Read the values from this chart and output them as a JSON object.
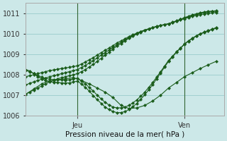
{
  "xlabel": "Pression niveau de la mer( hPa )",
  "bg_color": "#cce8e8",
  "grid_color": "#99cccc",
  "line_color": "#1a5c1a",
  "ylim": [
    1006.0,
    1011.5
  ],
  "xlim": [
    0,
    50
  ],
  "yticks": [
    1006,
    1007,
    1008,
    1009,
    1010,
    1011
  ],
  "xtick_positions": [
    13,
    40
  ],
  "xtick_labels": [
    "Jeu",
    "Ven"
  ],
  "vlines": [
    13,
    40
  ],
  "series": [
    {
      "x": [
        0,
        1,
        2,
        3,
        4,
        5,
        6,
        7,
        8,
        9,
        10,
        11,
        12,
        13,
        14,
        15,
        16,
        17,
        18,
        19,
        20,
        21,
        22,
        23,
        24,
        25,
        26,
        27,
        28,
        29,
        30,
        31,
        32,
        33,
        34,
        35,
        36,
        37,
        38,
        39,
        40,
        41,
        42,
        43,
        44,
        45,
        46,
        47,
        48
      ],
      "y": [
        1007.05,
        1007.15,
        1007.25,
        1007.35,
        1007.45,
        1007.55,
        1007.65,
        1007.72,
        1007.8,
        1007.85,
        1007.9,
        1007.95,
        1008.0,
        1008.05,
        1008.15,
        1008.25,
        1008.38,
        1008.5,
        1008.65,
        1008.8,
        1008.95,
        1009.1,
        1009.25,
        1009.4,
        1009.52,
        1009.65,
        1009.77,
        1009.88,
        1009.98,
        1010.07,
        1010.15,
        1010.22,
        1010.29,
        1010.35,
        1010.4,
        1010.44,
        1010.48,
        1010.55,
        1010.62,
        1010.7,
        1010.78,
        1010.85,
        1010.92,
        1010.97,
        1011.02,
        1011.06,
        1011.09,
        1011.1,
        1011.12
      ]
    },
    {
      "x": [
        0,
        1,
        2,
        3,
        4,
        5,
        6,
        7,
        8,
        9,
        10,
        11,
        12,
        13,
        14,
        15,
        16,
        17,
        18,
        19,
        20,
        21,
        22,
        23,
        24,
        25,
        26,
        27,
        28,
        29,
        30,
        31,
        32,
        33,
        34,
        35,
        36,
        37,
        38,
        39,
        40,
        41,
        42,
        43,
        44,
        45,
        46,
        47,
        48
      ],
      "y": [
        1007.5,
        1007.58,
        1007.65,
        1007.72,
        1007.78,
        1007.84,
        1007.9,
        1007.95,
        1008.0,
        1008.05,
        1008.1,
        1008.15,
        1008.2,
        1008.25,
        1008.35,
        1008.45,
        1008.57,
        1008.68,
        1008.82,
        1008.95,
        1009.08,
        1009.2,
        1009.33,
        1009.47,
        1009.58,
        1009.7,
        1009.82,
        1009.92,
        1010.01,
        1010.1,
        1010.17,
        1010.24,
        1010.3,
        1010.36,
        1010.41,
        1010.45,
        1010.49,
        1010.56,
        1010.63,
        1010.7,
        1010.77,
        1010.83,
        1010.89,
        1010.94,
        1010.99,
        1011.03,
        1011.06,
        1011.08,
        1011.1
      ]
    },
    {
      "x": [
        0,
        1,
        2,
        3,
        4,
        5,
        6,
        7,
        8,
        9,
        10,
        11,
        12,
        13,
        14,
        15,
        16,
        17,
        18,
        19,
        20,
        21,
        22,
        23,
        24,
        25,
        26,
        27,
        28,
        29,
        30,
        31,
        32,
        33,
        34,
        35,
        36,
        37,
        38,
        39,
        40,
        41,
        42,
        43,
        44,
        45,
        46,
        47,
        48
      ],
      "y": [
        1007.9,
        1007.95,
        1008.0,
        1008.05,
        1008.1,
        1008.15,
        1008.2,
        1008.23,
        1008.27,
        1008.3,
        1008.33,
        1008.36,
        1008.4,
        1008.43,
        1008.52,
        1008.62,
        1008.73,
        1008.83,
        1008.95,
        1009.08,
        1009.19,
        1009.3,
        1009.42,
        1009.55,
        1009.65,
        1009.75,
        1009.86,
        1009.95,
        1010.03,
        1010.11,
        1010.18,
        1010.24,
        1010.3,
        1010.35,
        1010.4,
        1010.44,
        1010.47,
        1010.54,
        1010.6,
        1010.67,
        1010.73,
        1010.79,
        1010.85,
        1010.89,
        1010.93,
        1010.96,
        1010.99,
        1011.02,
        1011.04
      ]
    },
    {
      "x": [
        0,
        1,
        2,
        3,
        4,
        5,
        6,
        7,
        8,
        9,
        10,
        11,
        12,
        13,
        14,
        15,
        16,
        17,
        18,
        19,
        20,
        21,
        22,
        23,
        24,
        25,
        26,
        27,
        28,
        29,
        30,
        31,
        32,
        33,
        34,
        35,
        36,
        37,
        38,
        39,
        40,
        41,
        42,
        43,
        44,
        45,
        46,
        47,
        48
      ],
      "y": [
        1008.2,
        1008.15,
        1008.05,
        1007.95,
        1007.88,
        1007.82,
        1007.78,
        1007.76,
        1007.75,
        1007.74,
        1007.73,
        1007.75,
        1007.8,
        1007.82,
        1007.7,
        1007.55,
        1007.38,
        1007.2,
        1007.0,
        1006.82,
        1006.65,
        1006.52,
        1006.42,
        1006.38,
        1006.38,
        1006.42,
        1006.5,
        1006.62,
        1006.77,
        1006.95,
        1007.15,
        1007.38,
        1007.62,
        1007.88,
        1008.15,
        1008.42,
        1008.7,
        1008.9,
        1009.12,
        1009.3,
        1009.5,
        1009.65,
        1009.78,
        1009.9,
        1010.0,
        1010.08,
        1010.15,
        1010.22,
        1010.3
      ]
    },
    {
      "x": [
        0,
        1,
        2,
        3,
        4,
        5,
        6,
        7,
        8,
        9,
        10,
        11,
        12,
        13,
        14,
        15,
        16,
        17,
        18,
        19,
        20,
        21,
        22,
        23,
        24,
        25,
        26,
        27,
        28,
        29,
        30,
        31,
        32,
        33,
        34,
        35,
        36,
        37,
        38,
        39,
        40,
        41,
        42,
        43,
        44,
        45,
        46,
        47,
        48
      ],
      "y": [
        1008.25,
        1008.18,
        1008.05,
        1007.9,
        1007.8,
        1007.72,
        1007.67,
        1007.63,
        1007.62,
        1007.6,
        1007.59,
        1007.6,
        1007.65,
        1007.68,
        1007.55,
        1007.38,
        1007.2,
        1006.98,
        1006.78,
        1006.6,
        1006.42,
        1006.3,
        1006.2,
        1006.15,
        1006.15,
        1006.2,
        1006.3,
        1006.44,
        1006.6,
        1006.8,
        1007.02,
        1007.26,
        1007.52,
        1007.8,
        1008.08,
        1008.37,
        1008.65,
        1008.86,
        1009.1,
        1009.28,
        1009.48,
        1009.63,
        1009.76,
        1009.88,
        1009.98,
        1010.06,
        1010.13,
        1010.2,
        1010.27
      ]
    },
    {
      "x": [
        0,
        2,
        4,
        6,
        8,
        10,
        12,
        14,
        16,
        18,
        20,
        22,
        24,
        26,
        28,
        30,
        32,
        34,
        36,
        38,
        40,
        42,
        44,
        46,
        48
      ],
      "y": [
        1007.05,
        1007.3,
        1007.55,
        1007.7,
        1007.75,
        1007.8,
        1007.85,
        1007.72,
        1007.55,
        1007.35,
        1007.15,
        1006.88,
        1006.5,
        1006.35,
        1006.38,
        1006.5,
        1006.72,
        1007.0,
        1007.35,
        1007.62,
        1007.9,
        1008.1,
        1008.3,
        1008.48,
        1008.65
      ]
    }
  ]
}
